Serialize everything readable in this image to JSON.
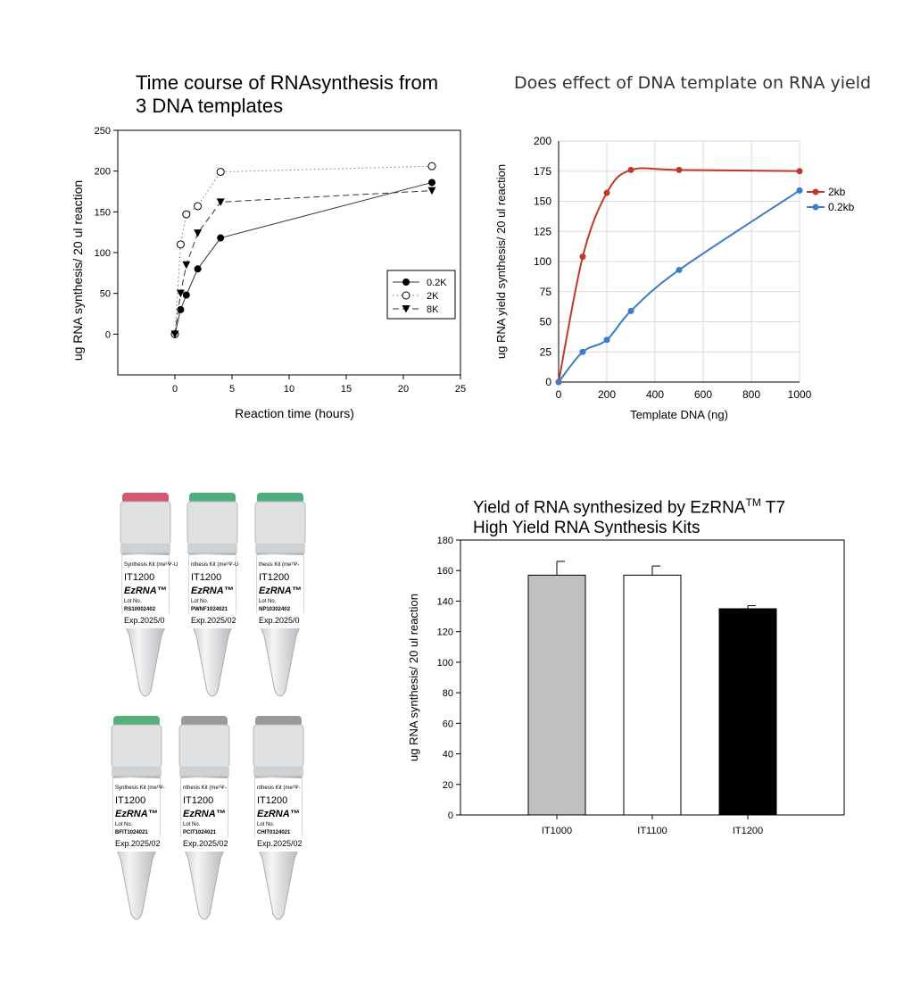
{
  "chart_data": [
    {
      "type": "line",
      "title_line1": "Time course of RNAsynthesis from",
      "title_line2": "3 DNA templates",
      "xlabel": "Reaction time (hours)",
      "ylabel": "ug RNA synthesis/ 20 ul reaction",
      "xlim": [
        -5,
        25
      ],
      "ylim": [
        -50,
        250
      ],
      "xticks": [
        0,
        5,
        10,
        15,
        20,
        25
      ],
      "yticks": [
        0,
        50,
        100,
        150,
        200,
        250
      ],
      "grid": false,
      "legend_position": "right",
      "series": [
        {
          "name": "0.2K",
          "marker": "filled-circle",
          "line": "solid",
          "x": [
            0,
            0.5,
            1,
            2,
            4,
            22.5
          ],
          "y": [
            0,
            30,
            48,
            80,
            118,
            186
          ]
        },
        {
          "name": "2K",
          "marker": "open-circle",
          "line": "dotted",
          "x": [
            0,
            0.5,
            1,
            2,
            4,
            22.5
          ],
          "y": [
            0,
            110,
            147,
            157,
            199,
            206
          ]
        },
        {
          "name": "8K",
          "marker": "triangle-down",
          "line": "dashed",
          "x": [
            0,
            0.5,
            1,
            2,
            4,
            22.5
          ],
          "y": [
            0,
            50,
            85,
            124,
            162,
            176
          ]
        }
      ]
    },
    {
      "type": "line",
      "title": "Does effect of DNA template on RNA yield",
      "xlabel": "Template DNA (ng)",
      "ylabel": "ug RNA yield synthesis/ 20 ul reaction",
      "xlim": [
        0,
        1000
      ],
      "ylim": [
        0,
        200
      ],
      "xticks": [
        0,
        200,
        400,
        600,
        800,
        1000
      ],
      "yticks": [
        0,
        25,
        50,
        75,
        100,
        125,
        150,
        175,
        200
      ],
      "grid": true,
      "legend_position": "right",
      "series": [
        {
          "name": "2kb",
          "color": "#c0392b",
          "x": [
            0,
            100,
            200,
            300,
            500,
            1000
          ],
          "y": [
            0,
            104,
            157,
            176,
            176,
            175
          ]
        },
        {
          "name": "0.2kb",
          "color": "#3b7dc4",
          "x": [
            0,
            100,
            200,
            300,
            500,
            1000
          ],
          "y": [
            0,
            25,
            35,
            59,
            93,
            159
          ]
        }
      ]
    },
    {
      "type": "bar",
      "title_line1": "Yield of RNA synthesized by EzRNA",
      "title_sup": "TM",
      "title_line1_end": " T7",
      "title_line2": "High Yield RNA Synthesis Kits",
      "xlabel": "",
      "ylabel": "ug RNA synthesis/ 20 ul reaction",
      "ylim": [
        0,
        180
      ],
      "yticks": [
        0,
        20,
        40,
        60,
        80,
        100,
        120,
        140,
        160,
        180
      ],
      "categories": [
        "IT1000",
        "IT1100",
        "IT1200"
      ],
      "values": [
        157,
        157,
        135
      ],
      "errors": [
        9,
        6,
        2
      ],
      "colors": [
        "#c0c0c0",
        "#ffffff",
        "#000000"
      ]
    }
  ],
  "tubes": [
    {
      "cap_color": "#d4566f",
      "kit_text": "Synthesis Kit (me¹Ψ-U",
      "code": "IT1200",
      "brand": "EzRNA™",
      "lot_label": "Lot No.",
      "lot": "RS10002402",
      "exp": "Exp.2025/0"
    },
    {
      "cap_color": "#4fae7e",
      "kit_text": "nthesis Kit (me¹Ψ-U",
      "code": "IT1200",
      "brand": "EzRNA™",
      "lot_label": "Lot No.",
      "lot": "PWNF1024021",
      "exp": "Exp.2025/02"
    },
    {
      "cap_color": "#4fae7e",
      "kit_text": "thesis Kit (me¹Ψ-",
      "code": "IT1200",
      "brand": "EzRNA™",
      "lot_label": "Lot No.",
      "lot": "NP10302402",
      "exp": "Exp.2025/0"
    },
    {
      "cap_color": "#55b07a",
      "kit_text": "Synthesis Kit (me¹Ψ-",
      "code": "IT1200",
      "brand": "EzRNA™",
      "lot_label": "Lot No.",
      "lot": "BFIT1024021",
      "exp": "Exp.2025/02"
    },
    {
      "cap_color": "#9a9a9a",
      "kit_text": "nthesis Kit (me¹Ψ-",
      "code": "IT1200",
      "brand": "EzRNA™",
      "lot_label": "Lot No.",
      "lot": "PCIT1024021",
      "exp": "Exp.2025/02"
    },
    {
      "cap_color": "#9a9a9a",
      "kit_text": "nthesis Kit (me¹Ψ-",
      "code": "IT1200",
      "brand": "EzRNA™",
      "lot_label": "Lot No.",
      "lot": "CHIT0124021",
      "exp": "Exp.2025/02"
    }
  ]
}
